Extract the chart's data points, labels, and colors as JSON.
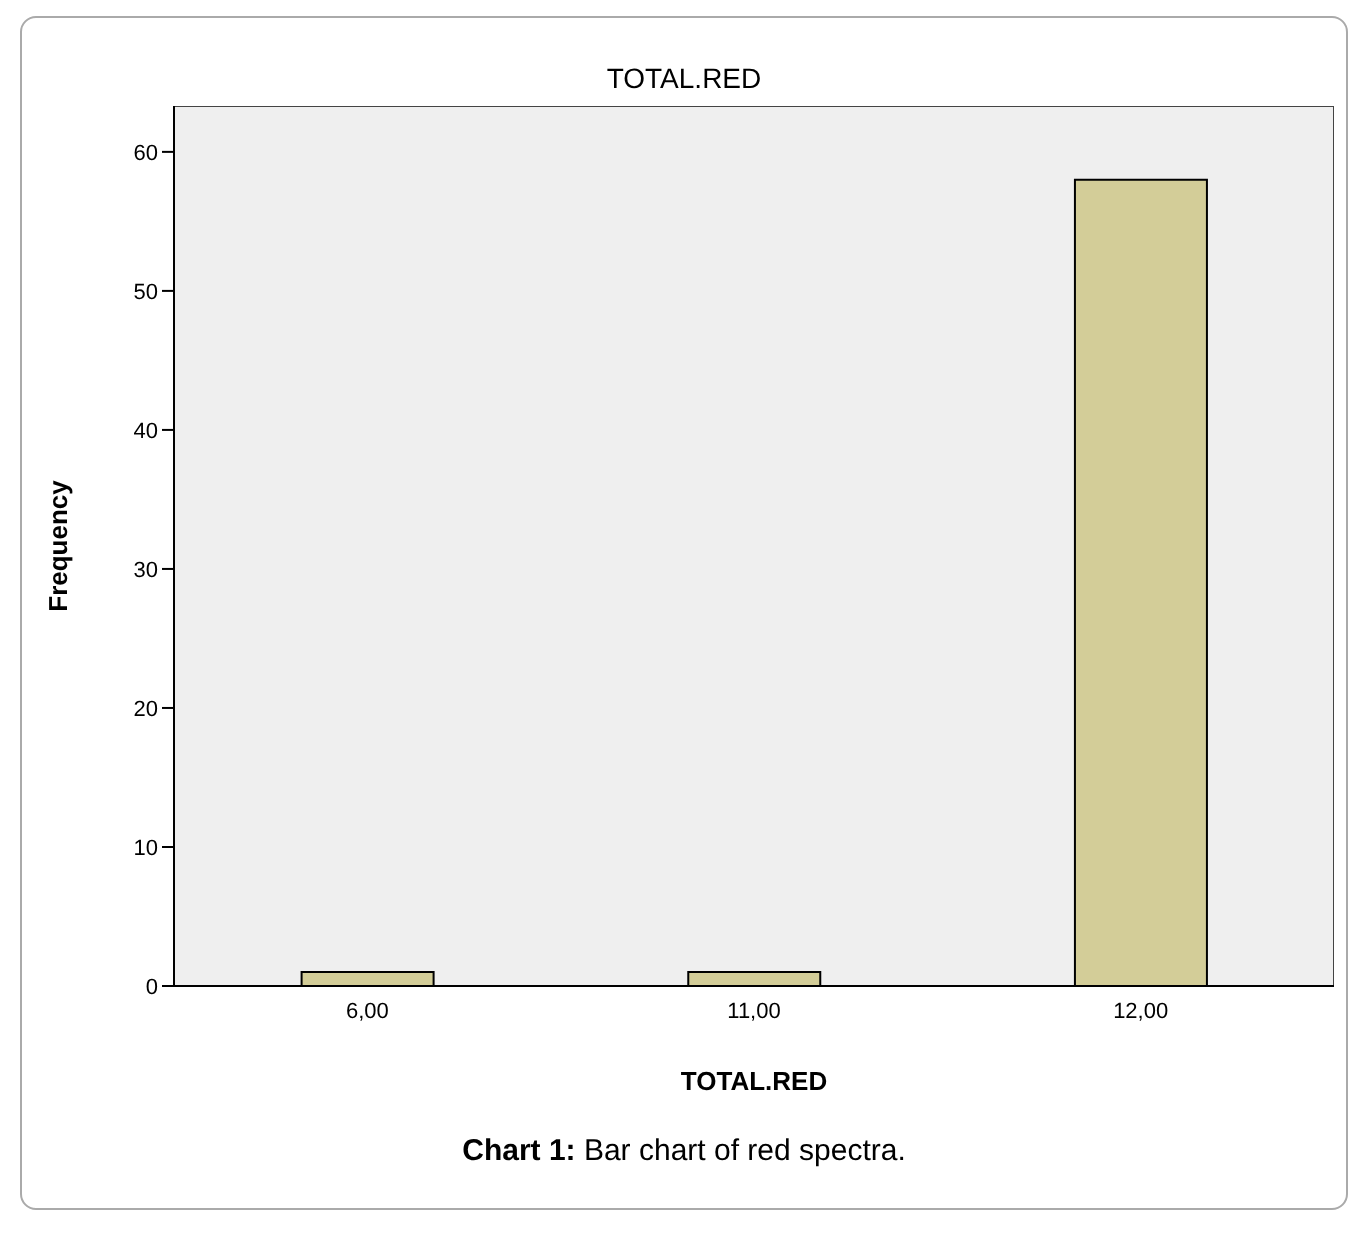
{
  "chart_data": {
    "type": "bar",
    "title": "TOTAL.RED",
    "xlabel": "TOTAL.RED",
    "ylabel": "Frequency",
    "categories": [
      "6,00",
      "11,00",
      "12,00"
    ],
    "values": [
      1,
      1,
      58
    ],
    "color": "#d3cd98",
    "ylim": [
      0,
      63.3
    ],
    "yticks": [
      0,
      10,
      20,
      30,
      40,
      50,
      60
    ],
    "grid": false,
    "annotations": [
      "Chart 1: Bar chart of red spectra."
    ]
  }
}
